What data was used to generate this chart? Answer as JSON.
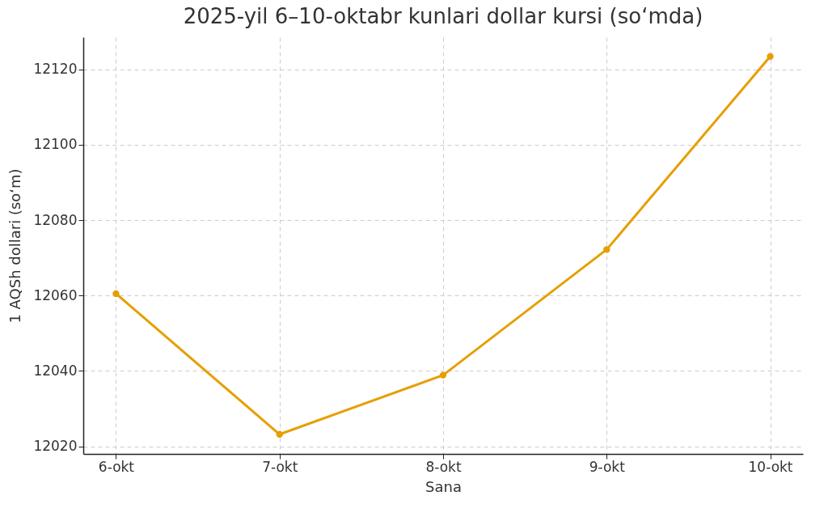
{
  "chart_data": {
    "type": "line",
    "title": "2025-yil 6–10-oktabr kunlari dollar kursi (so‘mda)",
    "xlabel": "Sana",
    "ylabel": "1 AQSh dollari (so‘m)",
    "categories": [
      "6-okt",
      "7-okt",
      "8-okt",
      "9-okt",
      "10-okt"
    ],
    "series": [
      {
        "color": "#e69f00",
        "values": [
          12060.5,
          12023.2,
          12038.9,
          12072.2,
          12123.4
        ]
      }
    ],
    "ylim": [
      12018,
      12128.5
    ],
    "yticks": [
      12020,
      12040,
      12060,
      12080,
      12100,
      12120
    ],
    "grid": true,
    "marker": "circle",
    "line_style": "solid"
  }
}
